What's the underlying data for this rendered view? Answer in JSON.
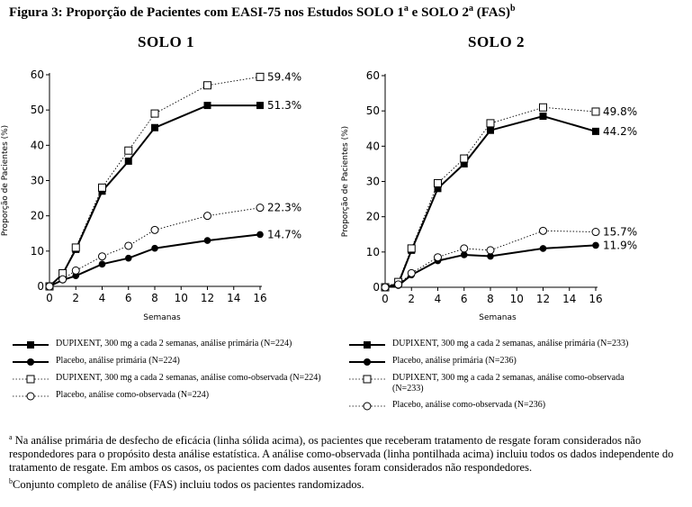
{
  "figure": {
    "title": "Figura 3: Proporção de Pacientes com EASI-75 nos Estudos SOLO 1",
    "title_sup_a": "a",
    "title_mid": " e SOLO 2",
    "title_sup_a2": "a",
    "title_end": " (FAS)",
    "title_sup_b": "b"
  },
  "chart_data": [
    {
      "type": "line",
      "title": "SOLO 1",
      "xlabel": "Semanas",
      "ylabel": "Proporção de Pacientes (%)",
      "xlim": [
        0,
        16
      ],
      "ylim": [
        0,
        60
      ],
      "x_ticks": [
        "0",
        "2",
        "4",
        "6",
        "8",
        "10",
        "12",
        "14",
        "16"
      ],
      "y_ticks": [
        "0",
        "10",
        "20",
        "30",
        "40",
        "50",
        "60"
      ],
      "grid": false,
      "series": [
        {
          "name": "DUPIXENT, 300 mg a cada 2 semanas, análise primária (N=224)",
          "style": "solid",
          "marker": "filled-square",
          "x": [
            0,
            1,
            2,
            4,
            6,
            8,
            12,
            16
          ],
          "y": [
            0,
            3.5,
            10.5,
            27,
            35.5,
            45,
            51.3,
            51.3
          ],
          "end_label": "51.3%"
        },
        {
          "name": "Placebo, análise primária (N=224)",
          "style": "solid",
          "marker": "filled-circle",
          "x": [
            0,
            1,
            2,
            4,
            6,
            8,
            12,
            16
          ],
          "y": [
            0,
            1.8,
            3,
            6.3,
            8,
            10.8,
            13,
            14.7
          ],
          "end_label": "14.7%"
        },
        {
          "name": "DUPIXENT, 300 mg a cada 2 semanas, análise como-observada (N=224)",
          "style": "dotted",
          "marker": "open-square",
          "x": [
            0,
            1,
            2,
            4,
            6,
            8,
            12,
            16
          ],
          "y": [
            0,
            3.7,
            11,
            28,
            38.5,
            49,
            57,
            59.4
          ],
          "end_label": "59.4%"
        },
        {
          "name": "Placebo, análise como-observada (N=224)",
          "style": "dotted",
          "marker": "open-circle",
          "x": [
            0,
            1,
            2,
            4,
            6,
            8,
            12,
            16
          ],
          "y": [
            0,
            2,
            4.5,
            8.5,
            11.5,
            16,
            20,
            22.3
          ],
          "end_label": "22.3%"
        }
      ]
    },
    {
      "type": "line",
      "title": "SOLO 2",
      "xlabel": "Semanas",
      "ylabel": "Proporção de Pacientes (%)",
      "xlim": [
        0,
        16
      ],
      "ylim": [
        0,
        60
      ],
      "x_ticks": [
        "0",
        "2",
        "4",
        "6",
        "8",
        "10",
        "12",
        "14",
        "16"
      ],
      "y_ticks": [
        "0",
        "10",
        "20",
        "30",
        "40",
        "50",
        "60"
      ],
      "grid": false,
      "series": [
        {
          "name": "DUPIXENT, 300 mg a cada 2 semanas, análise primária (N=233)",
          "style": "solid",
          "marker": "filled-square",
          "x": [
            0,
            1,
            2,
            4,
            6,
            8,
            12,
            16
          ],
          "y": [
            0,
            1,
            10.5,
            28,
            35,
            44.5,
            48.5,
            44.2
          ],
          "end_label": "44.2%"
        },
        {
          "name": "Placebo, análise primária (N=236)",
          "style": "solid",
          "marker": "filled-circle",
          "x": [
            0,
            1,
            2,
            4,
            6,
            8,
            12,
            16
          ],
          "y": [
            0,
            0.5,
            3.5,
            7.5,
            9.2,
            8.8,
            11,
            11.9
          ],
          "end_label": "11.9%"
        },
        {
          "name": "DUPIXENT, 300 mg a cada 2 semanas, análise como-observada (N=233)",
          "style": "dotted",
          "marker": "open-square",
          "x": [
            0,
            1,
            2,
            4,
            6,
            8,
            12,
            16
          ],
          "y": [
            0,
            1.5,
            11,
            29.5,
            36.5,
            46.5,
            51,
            49.8
          ],
          "end_label": "49.8%"
        },
        {
          "name": "Placebo, análise como-observada (N=236)",
          "style": "dotted",
          "marker": "open-circle",
          "x": [
            0,
            1,
            2,
            4,
            6,
            8,
            12,
            16
          ],
          "y": [
            0,
            0.8,
            4,
            8.5,
            11,
            10.5,
            16,
            15.7
          ],
          "end_label": "15.7%"
        }
      ]
    }
  ],
  "footnotes": {
    "a_sup": "a",
    "a_text": " Na análise primária de desfecho de eficácia (linha sólida acima), os pacientes que receberam tratamento de resgate foram considerados não respondedores para o propósito desta análise estatística. A análise como-observada (linha pontilhada acima) incluiu todos os dados independente do tratamento de resgate. Em ambos os casos, os pacientes com dados ausentes foram considerados não respondedores.",
    "b_sup": "b",
    "b_text": "Conjunto completo de análise (FAS) incluiu todos os pacientes randomizados."
  }
}
